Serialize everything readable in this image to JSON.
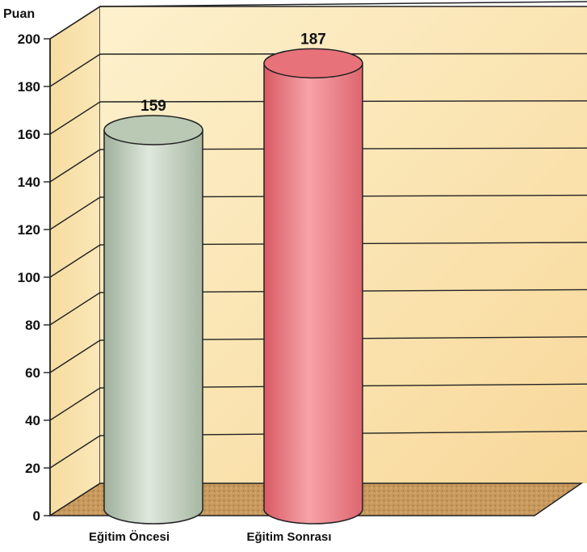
{
  "chart_data": {
    "type": "bar",
    "style": "3d-cylinder",
    "ylabel": "Puan",
    "ylim": [
      0,
      200
    ],
    "ytick_step": 20,
    "categories": [
      "Eğitim Öncesi",
      "Eğitim Sonrası"
    ],
    "values": [
      159,
      187
    ],
    "data_labels": [
      "159",
      "187"
    ],
    "grid": true,
    "colors": {
      "wall": "#fbe6b3",
      "floor": "#c79a5c",
      "bar1": "#b9c9b4",
      "bar2": "#e8727a"
    }
  }
}
